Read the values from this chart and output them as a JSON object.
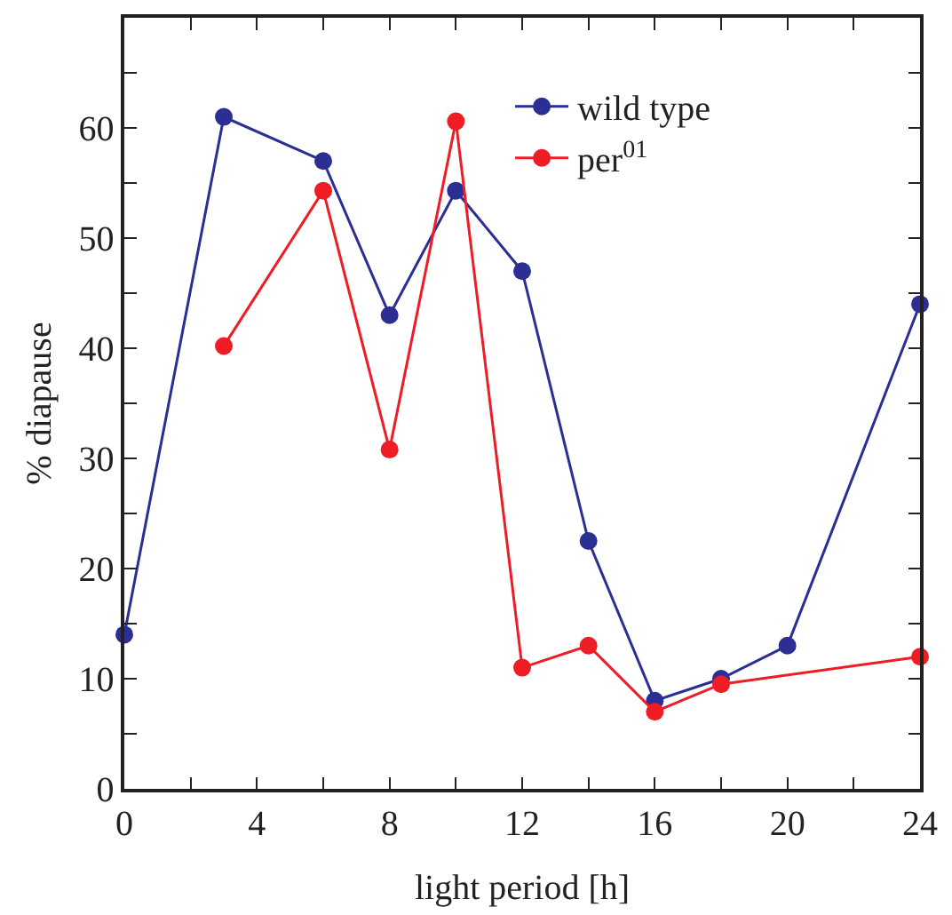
{
  "chart_data": {
    "type": "line",
    "xlabel": "light period [h]",
    "ylabel": "% diapause",
    "series": [
      {
        "name": "wild type",
        "color": "#2b2f94",
        "x": [
          0,
          3,
          6,
          8,
          10,
          12,
          14,
          16,
          18,
          20,
          24
        ],
        "values": [
          14,
          61,
          57,
          43,
          54.3,
          47,
          22.5,
          8,
          10,
          13,
          44
        ]
      },
      {
        "name": "per$^{01}$",
        "color": "#ee1c25",
        "x": [
          3,
          6,
          8,
          10,
          12,
          14,
          16,
          18,
          24
        ],
        "values": [
          40.2,
          54.3,
          30.8,
          60.6,
          11,
          13,
          7,
          9.5,
          12
        ]
      }
    ],
    "xlim": [
      0,
      24
    ],
    "ylim": [
      0,
      70
    ],
    "xticks": [
      0,
      {
        "value": 2,
        "label": null
      },
      4,
      {
        "value": 6,
        "label": null
      },
      8,
      {
        "value": 10,
        "label": null
      },
      12,
      {
        "value": 14,
        "label": null
      },
      16,
      {
        "value": 18,
        "label": null
      },
      20,
      {
        "value": 22,
        "label": null
      },
      24
    ],
    "yticks": [
      0,
      {
        "value": 5,
        "label": null
      },
      10,
      {
        "value": 15,
        "label": null
      },
      20,
      {
        "value": 25,
        "label": null
      },
      30,
      {
        "value": 35,
        "label": null
      },
      40,
      {
        "value": 45,
        "label": null
      },
      50,
      {
        "value": 55,
        "label": null
      },
      60,
      {
        "value": 65,
        "label": null
      }
    ],
    "marker": "circle",
    "line_style": "solid",
    "legend": "top right"
  }
}
